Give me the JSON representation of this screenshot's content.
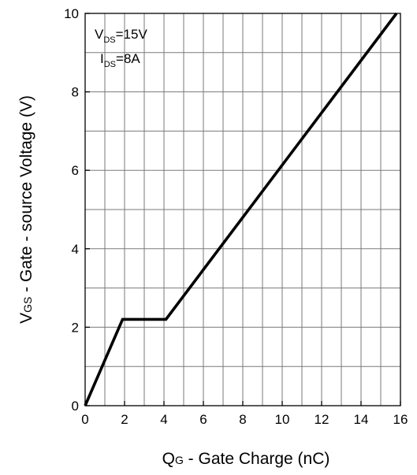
{
  "chart_data": {
    "type": "line",
    "title": "",
    "xlabel": {
      "main": "Q",
      "sub": "G",
      "rest": " - Gate Charge (nC)"
    },
    "ylabel": {
      "main": "V",
      "sub": "GS",
      "rest": " - Gate - source Voltage (V)"
    },
    "xlim": [
      0,
      16
    ],
    "ylim": [
      0,
      10
    ],
    "x_ticks": [
      0,
      2,
      4,
      6,
      8,
      10,
      12,
      14,
      16
    ],
    "y_ticks": [
      0,
      2,
      4,
      6,
      8,
      10
    ],
    "x_tick_labels": [
      "0",
      "2",
      "4",
      "6",
      "8",
      "10",
      "12",
      "14",
      "16"
    ],
    "y_tick_labels": [
      "0",
      "2",
      "4",
      "6",
      "8",
      "10"
    ],
    "x_grid_step": 1,
    "y_grid_step": 1,
    "grid": true,
    "annotations": [
      {
        "main": "V",
        "sub": "DS",
        "rest": "=15V"
      },
      {
        "main": "I",
        "sub": "DS",
        "rest": "=8A"
      }
    ],
    "series": [
      {
        "x": [
          0,
          1.9,
          4.1,
          15.8
        ],
        "y": [
          0,
          2.2,
          2.2,
          10
        ],
        "color": "#000000"
      }
    ]
  }
}
